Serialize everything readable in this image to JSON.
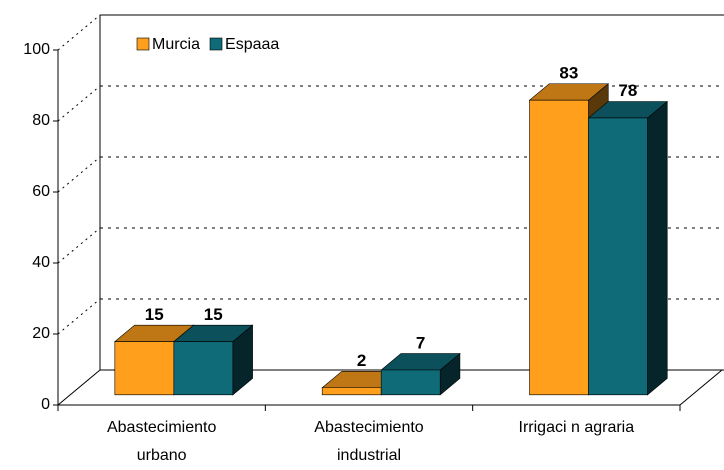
{
  "chart_data": {
    "type": "bar3d",
    "categories": [
      [
        "Abastecimiento",
        "urbano"
      ],
      [
        "Abastecimiento",
        "industrial"
      ],
      [
        "Irrigaci n agraria"
      ]
    ],
    "series": [
      {
        "name": "Murcia",
        "color": "#ff9f1c",
        "values": [
          15,
          2,
          83
        ]
      },
      {
        "name": "Espaaa",
        "color": "#0f6b78",
        "values": [
          15,
          7,
          78
        ]
      }
    ],
    "ylim": [
      0,
      100
    ],
    "yticks": [
      0,
      20,
      40,
      60,
      80,
      100
    ],
    "grid": true,
    "legend": "top-left"
  }
}
